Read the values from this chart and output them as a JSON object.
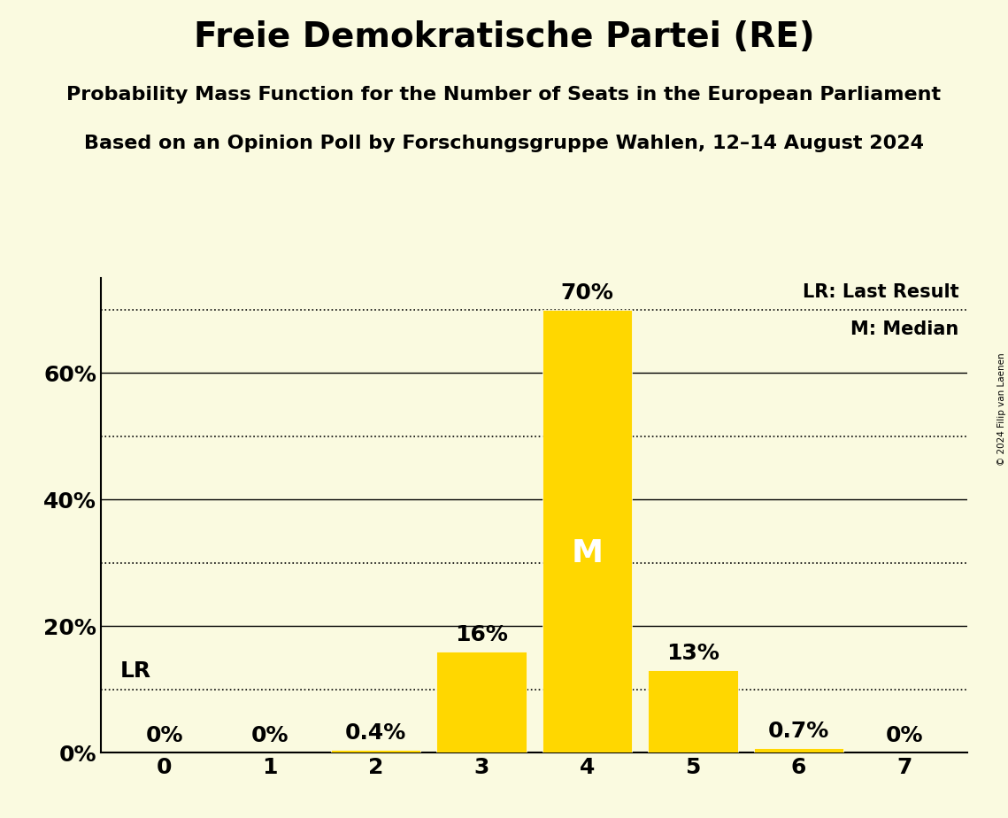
{
  "title": "Freie Demokratische Partei (RE)",
  "subtitle1": "Probability Mass Function for the Number of Seats in the European Parliament",
  "subtitle2": "Based on an Opinion Poll by Forschungsgruppe Wahlen, 12–14 August 2024",
  "copyright": "© 2024 Filip van Laenen",
  "categories": [
    0,
    1,
    2,
    3,
    4,
    5,
    6,
    7
  ],
  "values": [
    0.0,
    0.0,
    0.4,
    16.0,
    70.0,
    13.0,
    0.7,
    0.0
  ],
  "bar_color": "#FFD700",
  "background_color": "#FAFAE0",
  "median_seat": 4,
  "lr_value": 10.0,
  "lr_label": "LR",
  "median_label": "M",
  "legend_lr": "LR: Last Result",
  "legend_m": "M: Median",
  "ylim": [
    0,
    75
  ],
  "yticks": [
    0,
    20,
    40,
    60
  ],
  "dotted_lines": [
    10,
    30,
    50,
    70
  ],
  "bar_labels": [
    "0%",
    "0%",
    "0.4%",
    "16%",
    "70%",
    "13%",
    "0.7%",
    "0%"
  ],
  "title_fontsize": 28,
  "subtitle_fontsize": 16,
  "tick_fontsize": 18,
  "bar_label_fontsize": 18,
  "legend_fontsize": 15,
  "median_fontsize": 26
}
